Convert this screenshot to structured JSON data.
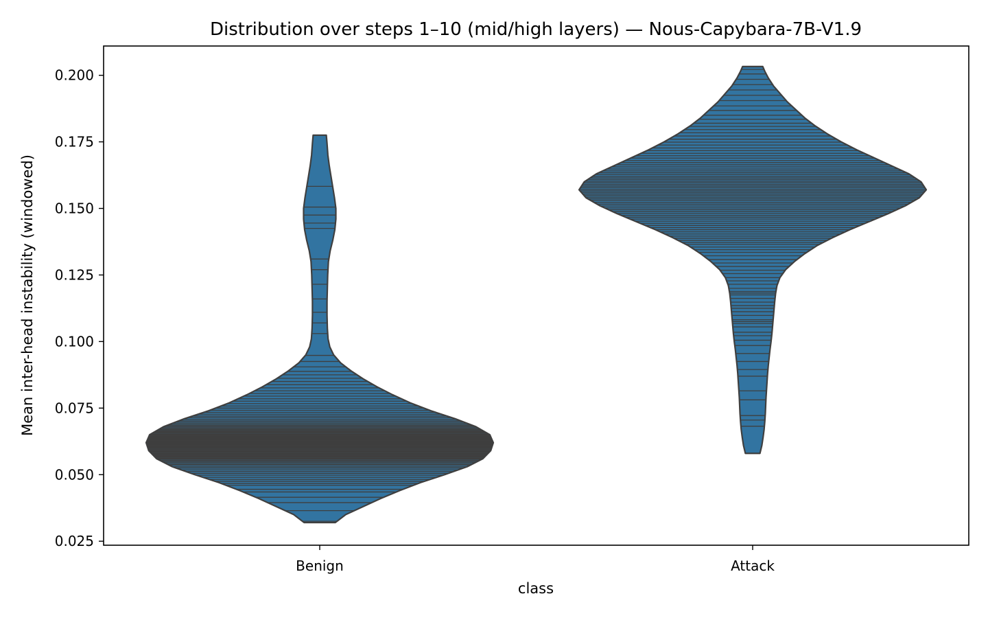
{
  "chart_data": {
    "type": "violin",
    "title": "Distribution over steps 1–10 (mid/high layers) — Nous-Capybara-7B-V1.9",
    "xlabel": "class",
    "ylabel": "Mean inter-head instability (windowed)",
    "categories": [
      "Benign",
      "Attack"
    ],
    "ylim": [
      0.0235,
      0.211
    ],
    "yticks": [
      "0.025",
      "0.050",
      "0.075",
      "0.100",
      "0.125",
      "0.150",
      "0.175",
      "0.200"
    ],
    "yticks_values": [
      0.025,
      0.05,
      0.075,
      0.1,
      0.125,
      0.15,
      0.175,
      0.2
    ],
    "grid": false,
    "inner": "stick",
    "colors": {
      "fill": "#3274a1",
      "edge": "#3f3f3f",
      "frame": "#000000"
    },
    "series": [
      {
        "category": "Benign",
        "min": 0.032,
        "max": 0.1775,
        "density_profile": [
          [
            0.032,
            0.09
          ],
          [
            0.035,
            0.15
          ],
          [
            0.038,
            0.25
          ],
          [
            0.041,
            0.35
          ],
          [
            0.044,
            0.46
          ],
          [
            0.047,
            0.58
          ],
          [
            0.05,
            0.72
          ],
          [
            0.053,
            0.85
          ],
          [
            0.056,
            0.94
          ],
          [
            0.059,
            0.985
          ],
          [
            0.062,
            1.0
          ],
          [
            0.065,
            0.98
          ],
          [
            0.068,
            0.9
          ],
          [
            0.071,
            0.78
          ],
          [
            0.074,
            0.64
          ],
          [
            0.077,
            0.52
          ],
          [
            0.08,
            0.42
          ],
          [
            0.083,
            0.33
          ],
          [
            0.086,
            0.25
          ],
          [
            0.089,
            0.18
          ],
          [
            0.092,
            0.12
          ],
          [
            0.095,
            0.08
          ],
          [
            0.098,
            0.058
          ],
          [
            0.101,
            0.048
          ],
          [
            0.105,
            0.044
          ],
          [
            0.11,
            0.042
          ],
          [
            0.115,
            0.042
          ],
          [
            0.12,
            0.044
          ],
          [
            0.125,
            0.046
          ],
          [
            0.13,
            0.05
          ],
          [
            0.134,
            0.06
          ],
          [
            0.138,
            0.075
          ],
          [
            0.142,
            0.087
          ],
          [
            0.146,
            0.093
          ],
          [
            0.15,
            0.093
          ],
          [
            0.154,
            0.085
          ],
          [
            0.158,
            0.075
          ],
          [
            0.162,
            0.065
          ],
          [
            0.166,
            0.055
          ],
          [
            0.17,
            0.047
          ],
          [
            0.1745,
            0.042
          ],
          [
            0.1775,
            0.038
          ]
        ],
        "observations": [
          0.0325,
          0.0365,
          0.0395,
          0.0415,
          0.0435,
          0.0445,
          0.046,
          0.0467,
          0.0475,
          0.0482,
          0.049,
          0.0498,
          0.0505,
          0.0512,
          0.0518,
          0.0525,
          0.053,
          0.0536,
          0.054,
          0.0545,
          0.0549,
          0.0553,
          0.0557,
          0.056,
          0.0563,
          0.0566,
          0.0569,
          0.0572,
          0.0575,
          0.0578,
          0.058,
          0.0583,
          0.0586,
          0.0588,
          0.059,
          0.0593,
          0.0595,
          0.0598,
          0.06,
          0.0602,
          0.0604,
          0.0606,
          0.0608,
          0.061,
          0.0612,
          0.0614,
          0.0616,
          0.0618,
          0.062,
          0.0622,
          0.0624,
          0.0626,
          0.0628,
          0.063,
          0.0632,
          0.0634,
          0.0636,
          0.0638,
          0.064,
          0.0642,
          0.0645,
          0.0648,
          0.065,
          0.0653,
          0.0656,
          0.0659,
          0.0662,
          0.0665,
          0.0668,
          0.0671,
          0.0675,
          0.0679,
          0.0683,
          0.0687,
          0.0692,
          0.0697,
          0.0702,
          0.0708,
          0.0714,
          0.072,
          0.0727,
          0.0734,
          0.0742,
          0.075,
          0.0758,
          0.0767,
          0.0776,
          0.0785,
          0.0795,
          0.0805,
          0.0815,
          0.0826,
          0.0838,
          0.085,
          0.0862,
          0.0875,
          0.0888,
          0.0905,
          0.0925,
          0.0948,
          0.103,
          0.107,
          0.111,
          0.116,
          0.1215,
          0.127,
          0.131,
          0.1425,
          0.1445,
          0.1475,
          0.1505,
          0.1583
        ]
      },
      {
        "category": "Attack",
        "min": 0.058,
        "max": 0.2033,
        "density_profile": [
          [
            0.058,
            0.042
          ],
          [
            0.061,
            0.053
          ],
          [
            0.064,
            0.06
          ],
          [
            0.067,
            0.066
          ],
          [
            0.07,
            0.07
          ],
          [
            0.073,
            0.073
          ],
          [
            0.076,
            0.075
          ],
          [
            0.079,
            0.077
          ],
          [
            0.082,
            0.08
          ],
          [
            0.085,
            0.083
          ],
          [
            0.088,
            0.086
          ],
          [
            0.091,
            0.09
          ],
          [
            0.094,
            0.095
          ],
          [
            0.097,
            0.1
          ],
          [
            0.1,
            0.106
          ],
          [
            0.103,
            0.111
          ],
          [
            0.106,
            0.115
          ],
          [
            0.109,
            0.119
          ],
          [
            0.112,
            0.123
          ],
          [
            0.115,
            0.127
          ],
          [
            0.118,
            0.132
          ],
          [
            0.121,
            0.14
          ],
          [
            0.124,
            0.157
          ],
          [
            0.127,
            0.19
          ],
          [
            0.13,
            0.24
          ],
          [
            0.133,
            0.3
          ],
          [
            0.136,
            0.37
          ],
          [
            0.139,
            0.46
          ],
          [
            0.142,
            0.56
          ],
          [
            0.145,
            0.67
          ],
          [
            0.148,
            0.78
          ],
          [
            0.151,
            0.88
          ],
          [
            0.154,
            0.96
          ],
          [
            0.157,
            1.0
          ],
          [
            0.16,
            0.97
          ],
          [
            0.163,
            0.9
          ],
          [
            0.166,
            0.8
          ],
          [
            0.169,
            0.7
          ],
          [
            0.172,
            0.6
          ],
          [
            0.175,
            0.51
          ],
          [
            0.178,
            0.43
          ],
          [
            0.181,
            0.36
          ],
          [
            0.184,
            0.3
          ],
          [
            0.187,
            0.25
          ],
          [
            0.19,
            0.2
          ],
          [
            0.193,
            0.16
          ],
          [
            0.196,
            0.12
          ],
          [
            0.199,
            0.09
          ],
          [
            0.2015,
            0.07
          ],
          [
            0.2033,
            0.058
          ]
        ],
        "observations": [
          0.0682,
          0.0705,
          0.0722,
          0.0781,
          0.0815,
          0.087,
          0.0895,
          0.0925,
          0.0955,
          0.0985,
          0.1005,
          0.1022,
          0.1035,
          0.1055,
          0.1068,
          0.1075,
          0.1082,
          0.1098,
          0.1112,
          0.1125,
          0.1135,
          0.1148,
          0.1162,
          0.1175,
          0.1182,
          0.1188,
          0.12,
          0.1215,
          0.1228,
          0.124,
          0.1255,
          0.1268,
          0.1282,
          0.1295,
          0.1308,
          0.1322,
          0.1335,
          0.1345,
          0.1355,
          0.1365,
          0.1372,
          0.138,
          0.1388,
          0.1396,
          0.1404,
          0.1412,
          0.142,
          0.1428,
          0.1436,
          0.1444,
          0.1452,
          0.146,
          0.1467,
          0.1474,
          0.1481,
          0.1488,
          0.1495,
          0.1502,
          0.1509,
          0.1516,
          0.1523,
          0.153,
          0.1536,
          0.1542,
          0.1548,
          0.1554,
          0.156,
          0.1566,
          0.1572,
          0.1578,
          0.1584,
          0.159,
          0.1596,
          0.1602,
          0.1608,
          0.1614,
          0.162,
          0.1627,
          0.1634,
          0.1641,
          0.1648,
          0.1656,
          0.1664,
          0.1672,
          0.168,
          0.1689,
          0.1698,
          0.1707,
          0.1717,
          0.1727,
          0.1738,
          0.1749,
          0.176,
          0.1772,
          0.1784,
          0.1796,
          0.1808,
          0.182,
          0.1835,
          0.185,
          0.1868,
          0.1885,
          0.1905,
          0.1925,
          0.1945,
          0.1965,
          0.1985,
          0.2005,
          0.2022
        ]
      }
    ]
  }
}
